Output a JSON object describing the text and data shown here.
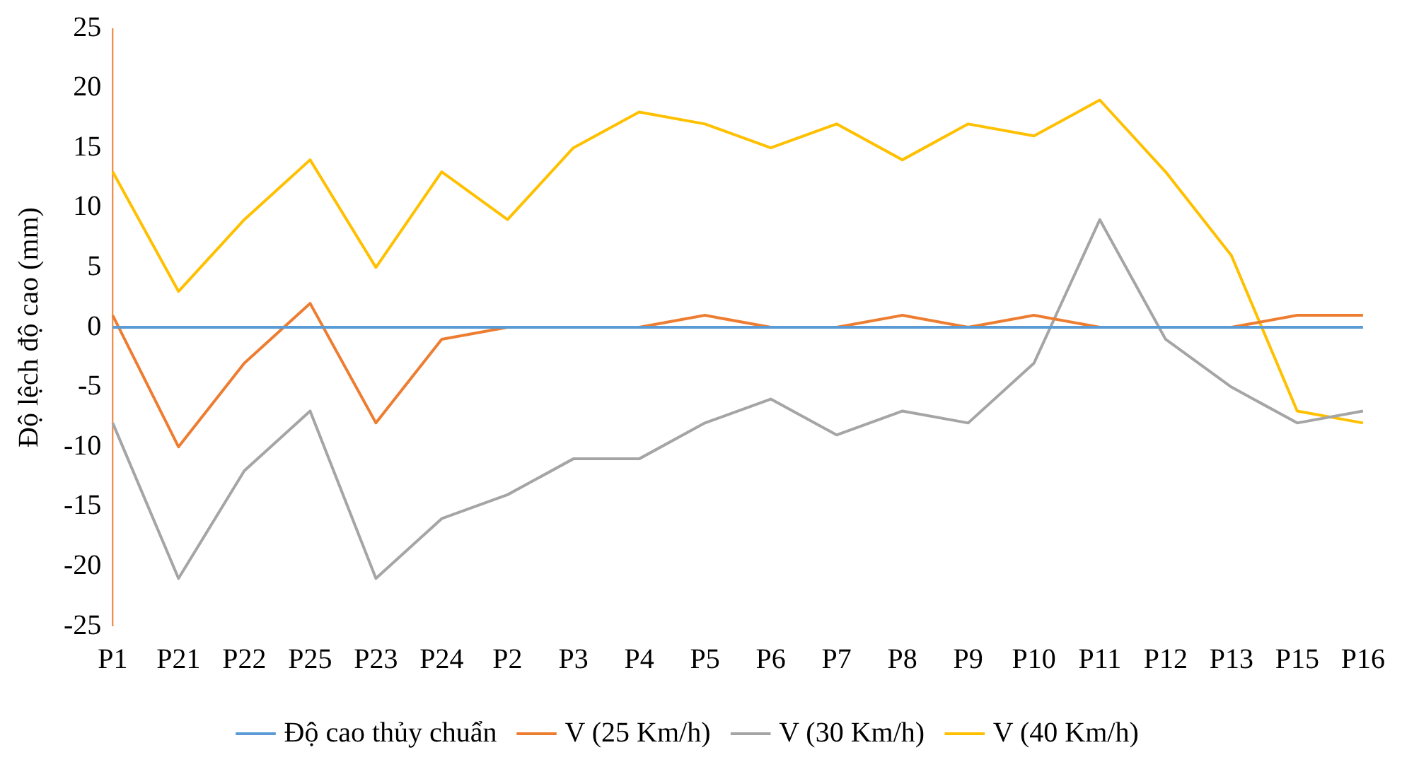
{
  "chart_data": {
    "type": "line",
    "ylabel": "Độ lệch độ cao (mm)",
    "categories": [
      "P1",
      "P21",
      "P22",
      "P25",
      "P23",
      "P24",
      "P2",
      "P3",
      "P4",
      "P5",
      "P6",
      "P7",
      "P8",
      "P9",
      "P10",
      "P11",
      "P12",
      "P13",
      "P15",
      "P16"
    ],
    "series": [
      {
        "name": "Độ cao thủy chuẩn",
        "color": "#5b9bd5",
        "values": [
          0,
          0,
          0,
          0,
          0,
          0,
          0,
          0,
          0,
          0,
          0,
          0,
          0,
          0,
          0,
          0,
          0,
          0,
          0,
          0
        ]
      },
      {
        "name": "V (25 Km/h)",
        "color": "#ed7d31",
        "values": [
          1,
          -10,
          -3,
          2,
          -8,
          -1,
          0,
          0,
          0,
          1,
          0,
          0,
          1,
          0,
          1,
          0,
          0,
          0,
          1,
          1
        ]
      },
      {
        "name": "V (30 Km/h)",
        "color": "#a5a5a5",
        "values": [
          -8,
          -21,
          -12,
          -7,
          -21,
          -16,
          -14,
          -11,
          -11,
          -8,
          -6,
          -9,
          -7,
          -8,
          -3,
          9,
          -1,
          -5,
          -8,
          -7
        ]
      },
      {
        "name": "V (40 Km/h)",
        "color": "#ffc000",
        "values": [
          13,
          3,
          9,
          14,
          5,
          13,
          9,
          15,
          18,
          17,
          15,
          17,
          14,
          17,
          16,
          19,
          13,
          6,
          -7,
          -8
        ]
      }
    ],
    "ylim": [
      -25,
      25
    ],
    "yticks": [
      -25,
      -20,
      -15,
      -10,
      -5,
      0,
      5,
      10,
      15,
      20,
      25
    ],
    "ref_lines": [
      {
        "axis": "x",
        "value": "P1",
        "color": "#ed7d31"
      }
    ],
    "grid": false,
    "legend": "bottom",
    "marker": "none",
    "line_style": "solid"
  }
}
